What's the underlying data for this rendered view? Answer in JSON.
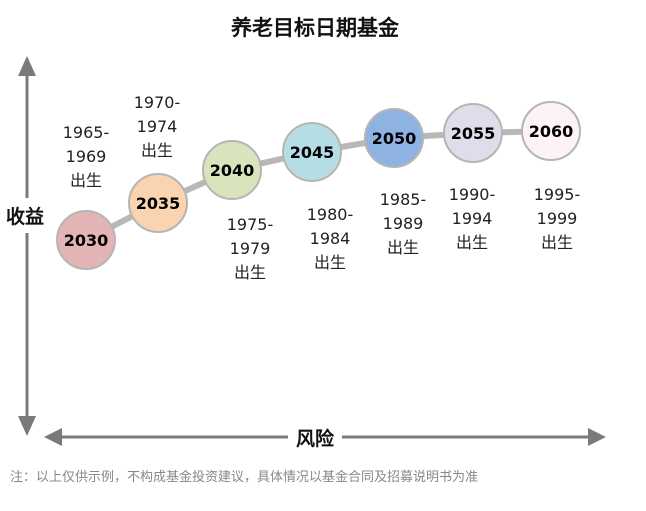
{
  "title": "养老目标日期基金",
  "y_axis_label": "收益",
  "x_axis_label": "风险",
  "line_color": "#b8b8b8",
  "axis_color": "#7a7a7a",
  "funds": [
    {
      "year": "2030",
      "range": "1965-",
      "range2": "1969",
      "suffix": "出生",
      "color": "#e3b3b5"
    },
    {
      "year": "2035",
      "range": "1970-",
      "range2": "1974",
      "suffix": "出生",
      "color": "#fad3b0"
    },
    {
      "year": "2040",
      "range": "1975-",
      "range2": "1979",
      "suffix": "出生",
      "color": "#d9e4bd"
    },
    {
      "year": "2045",
      "range": "1980-",
      "range2": "1984",
      "suffix": "出生",
      "color": "#b5dde6"
    },
    {
      "year": "2050",
      "range": "1985-",
      "range2": "1989",
      "suffix": "出生",
      "color": "#8eb3e2"
    },
    {
      "year": "2055",
      "range": "1990-",
      "range2": "1994",
      "suffix": "出生",
      "color": "#e0dcea"
    },
    {
      "year": "2060",
      "range": "1995-",
      "range2": "1999",
      "suffix": "出生",
      "color": "#fdf3f6"
    }
  ],
  "note": "注：以上仅供示例，不构成基金投资建议，具体情况以基金合同及招募说明书为准"
}
